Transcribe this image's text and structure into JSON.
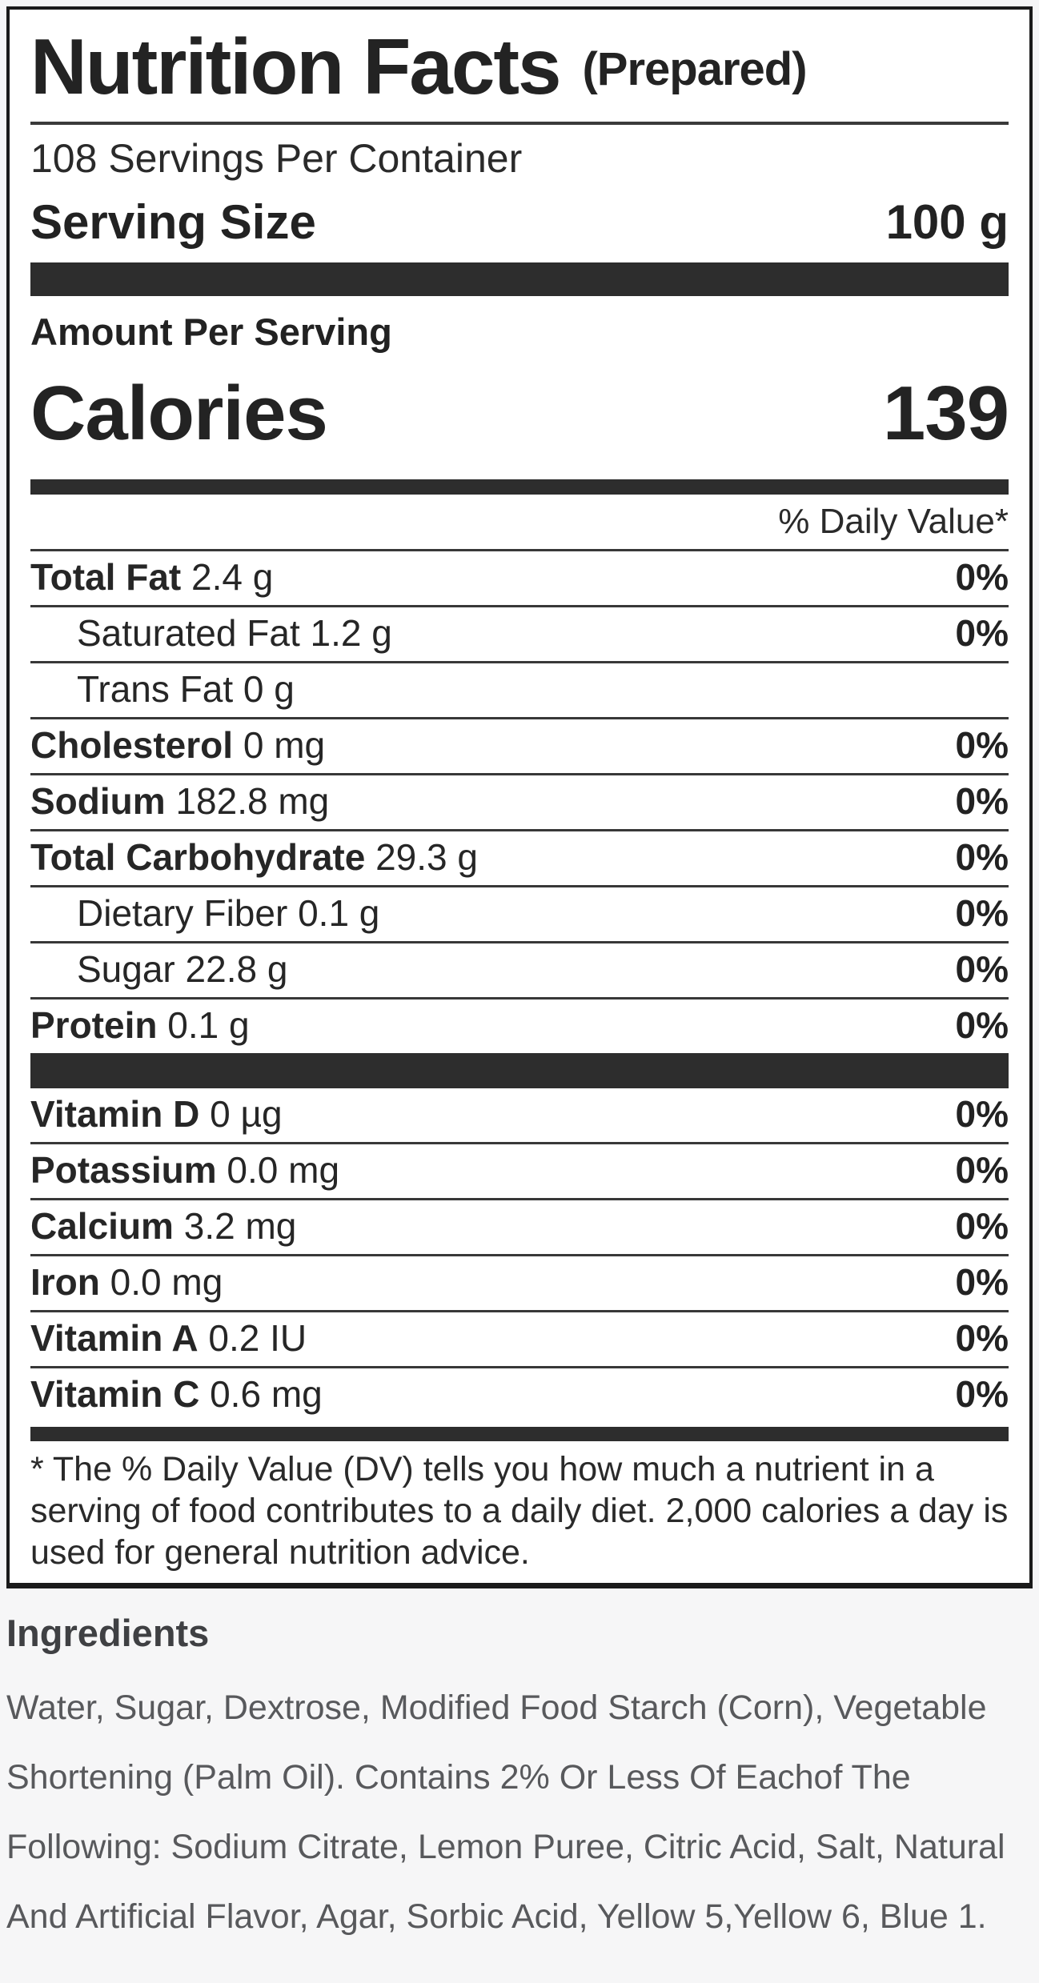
{
  "label": {
    "title": "Nutrition Facts",
    "title_suffix": "(Prepared)",
    "servings_per_container": "108 Servings Per Container",
    "serving_size_label": "Serving Size",
    "serving_size_value": "100 g",
    "amount_per_serving": "Amount Per Serving",
    "calories_label": "Calories",
    "calories_value": "139",
    "daily_value_header": "% Daily Value*",
    "nutrients": [
      {
        "name": "Total Fat",
        "amount": "2.4 g",
        "dv": "0%",
        "bold": true,
        "indent": false
      },
      {
        "name": "Saturated Fat",
        "amount": "1.2 g",
        "dv": "0%",
        "bold": false,
        "indent": true
      },
      {
        "name": "Trans Fat",
        "amount": "0 g",
        "dv": "",
        "bold": false,
        "indent": true
      },
      {
        "name": "Cholesterol",
        "amount": "0 mg",
        "dv": "0%",
        "bold": true,
        "indent": false
      },
      {
        "name": "Sodium",
        "amount": "182.8 mg",
        "dv": "0%",
        "bold": true,
        "indent": false
      },
      {
        "name": "Total Carbohydrate",
        "amount": "29.3 g",
        "dv": "0%",
        "bold": true,
        "indent": false
      },
      {
        "name": "Dietary Fiber",
        "amount": "0.1 g",
        "dv": "0%",
        "bold": false,
        "indent": true
      },
      {
        "name": "Sugar",
        "amount": "22.8 g",
        "dv": "0%",
        "bold": false,
        "indent": true
      },
      {
        "name": "Protein",
        "amount": "0.1 g",
        "dv": "0%",
        "bold": true,
        "indent": false
      }
    ],
    "micronutrients": [
      {
        "name": "Vitamin D",
        "amount": "0 µg",
        "dv": "0%",
        "bold": true,
        "indent": false
      },
      {
        "name": "Potassium",
        "amount": "0.0 mg",
        "dv": "0%",
        "bold": true,
        "indent": false
      },
      {
        "name": "Calcium",
        "amount": "3.2 mg",
        "dv": "0%",
        "bold": true,
        "indent": false
      },
      {
        "name": "Iron",
        "amount": "0.0 mg",
        "dv": "0%",
        "bold": true,
        "indent": false
      },
      {
        "name": "Vitamin A",
        "amount": "0.2 IU",
        "dv": "0%",
        "bold": true,
        "indent": false
      },
      {
        "name": "Vitamin C",
        "amount": "0.6 mg",
        "dv": "0%",
        "bold": true,
        "indent": false
      }
    ],
    "footnote": "* The % Daily Value (DV) tells you how much a nutrient in a serving of food contributes to a daily diet. 2,000 calories a day is used for general nutrition advice."
  },
  "ingredients": {
    "heading": "Ingredients",
    "text": "Water, Sugar, Dextrose, Modified Food Starch (Corn), Vegetable Shortening (Palm Oil). Contains 2% Or Less Of Eachof The Following: Sodium Citrate, Lemon Puree, Citric Acid, Salt, Natural And Artificial Flavor, Agar, Sorbic Acid, Yellow 5,Yellow 6, Blue 1."
  },
  "colors": {
    "page_background": "#f6f6f7",
    "label_background": "#ffffff",
    "border_and_bars": "#2d2d2d",
    "label_text": "#1c1c1c",
    "ingredients_text": "#58595c"
  }
}
